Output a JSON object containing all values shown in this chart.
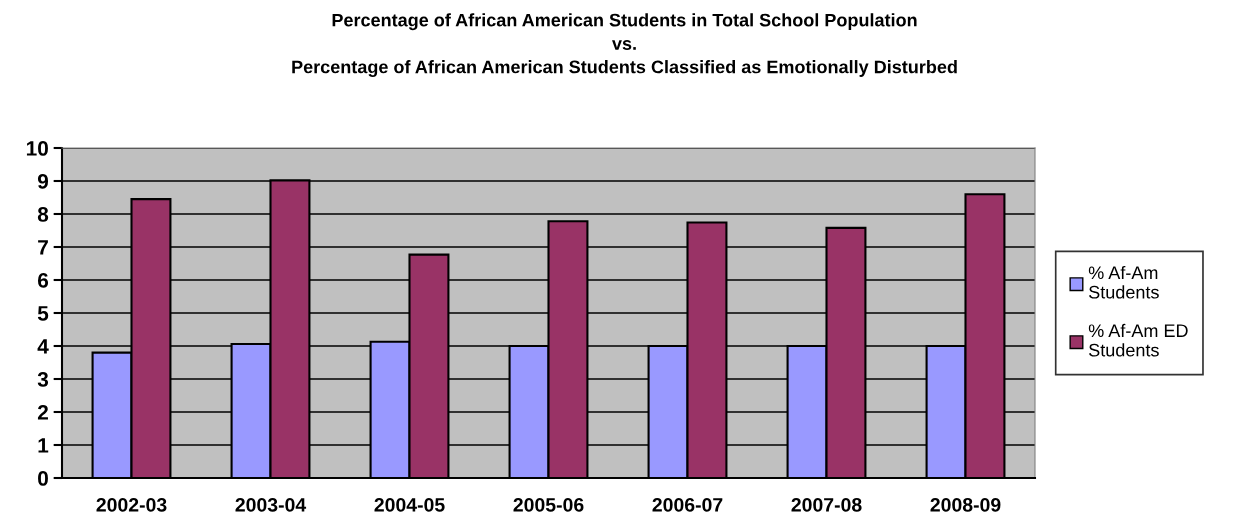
{
  "chart_data": {
    "type": "bar",
    "title": "Percentage of African American Students in Total School Population\nvs.\nPercentage of African American Students Classified as Emotionally Disturbed",
    "categories": [
      "2002-03",
      "2003-04",
      "2004-05",
      "2005-06",
      "2006-07",
      "2007-08",
      "2008-09"
    ],
    "series": [
      {
        "name": "% Af-Am Students",
        "color": "#9999ff",
        "values": [
          3.8,
          4.06,
          4.13,
          4.0,
          4.0,
          4.0,
          4.0
        ]
      },
      {
        "name": "% Af-Am ED Students",
        "color": "#993366",
        "values": [
          8.45,
          9.02,
          6.77,
          7.78,
          7.74,
          7.58,
          8.6
        ]
      }
    ],
    "ylim": [
      0,
      10
    ],
    "yticks": [
      0,
      1,
      2,
      3,
      4,
      5,
      6,
      7,
      8,
      9,
      10
    ],
    "grid": "y",
    "legend": "right"
  }
}
